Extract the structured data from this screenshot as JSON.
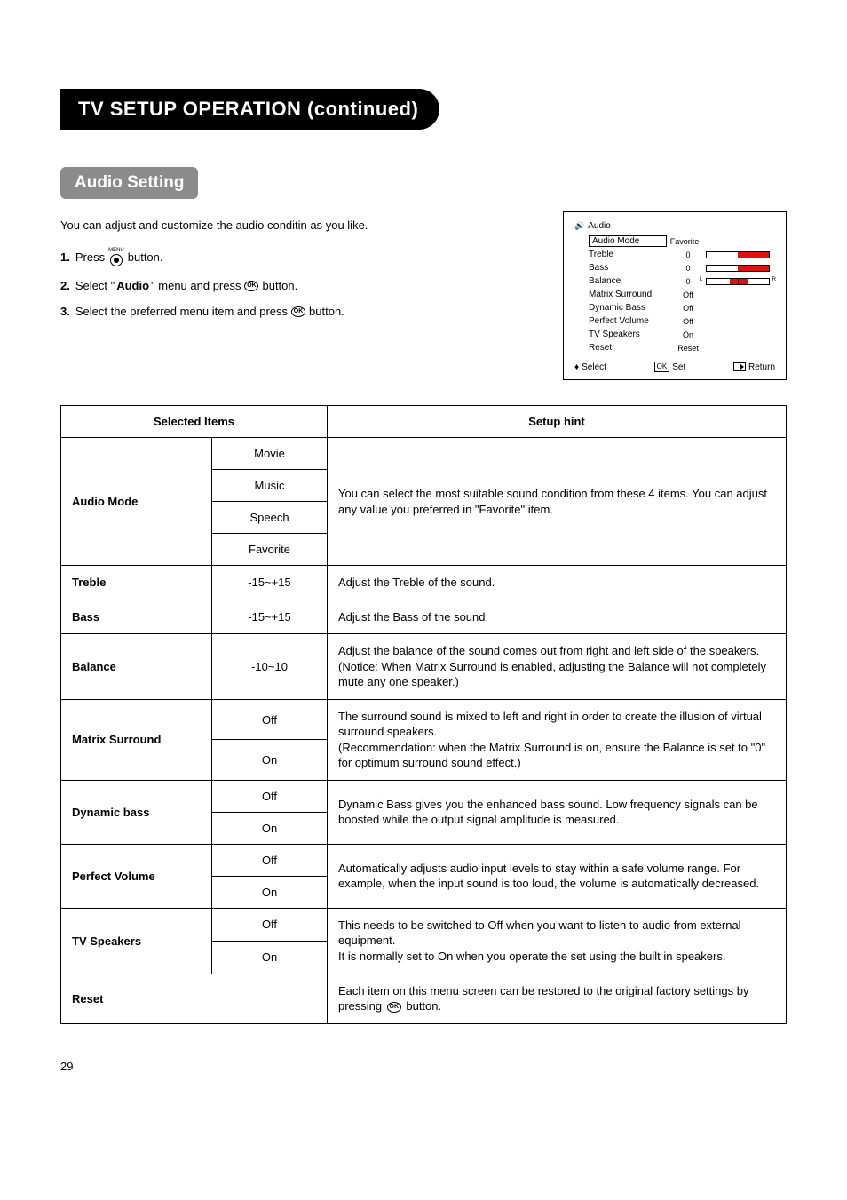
{
  "page": {
    "number": "29"
  },
  "title": "TV SETUP OPERATION (continued)",
  "subtitle": "Audio Setting",
  "intro": "You can adjust and customize the audio conditin as you like.",
  "steps": {
    "s1a": "Press",
    "s1b": "button.",
    "s2a": "Select \"",
    "s2b": "Audio",
    "s2c": "\" menu and press",
    "s2d": "button.",
    "s3a": "Select the preferred menu item and press",
    "s3b": "button.",
    "menu_label": "MENU",
    "ok_label": "OK"
  },
  "osd": {
    "title": "Audio",
    "rows": [
      {
        "label": "Audio Mode",
        "value": "Favorite",
        "boxed": true
      },
      {
        "label": "Treble",
        "value": "0",
        "slider": "half-right"
      },
      {
        "label": "Bass",
        "value": "0",
        "slider": "half-right"
      },
      {
        "label": "Balance",
        "value": "0",
        "slider": "center",
        "left": "L",
        "right": "R"
      },
      {
        "label": "Matrix Surround",
        "value": "Off"
      },
      {
        "label": "Dynamic Bass",
        "value": "Off"
      },
      {
        "label": "Perfect Volume",
        "value": "Off"
      },
      {
        "label": "TV Speakers",
        "value": "On"
      },
      {
        "label": "Reset",
        "value": "Reset"
      }
    ],
    "footer": {
      "select": "Select",
      "set": "Set",
      "ok": "OK",
      "return": "Return"
    },
    "colors": {
      "slider_fill": "#e01010"
    }
  },
  "table_headers": {
    "selected": "Selected Items",
    "hint": "Setup hint"
  },
  "table": [
    {
      "item": "Audio Mode",
      "opts": [
        "Movie",
        "Music",
        "Speech",
        "Favorite"
      ],
      "hint": "You can select the most suitable sound condition from these 4 items. You can adjust any value you preferred in \"Favorite\" item."
    },
    {
      "item": "Treble",
      "opts": [
        "-15~+15"
      ],
      "hint": "Adjust the Treble of the sound."
    },
    {
      "item": "Bass",
      "opts": [
        "-15~+15"
      ],
      "hint": "Adjust the Bass of the sound."
    },
    {
      "item": "Balance",
      "opts": [
        "-10~10"
      ],
      "hint": "Adjust the balance of the sound comes out from right and left side of the speakers.\n(Notice: When Matrix Surround is enabled, adjusting the Balance will not completely mute any one speaker.)"
    },
    {
      "item": "Matrix Surround",
      "opts": [
        "Off",
        "On"
      ],
      "hint": "The surround sound is mixed to left and right in order to create the illusion of virtual surround speakers.\n(Recommendation: when the Matrix Surround is on, ensure the Balance is set to \"0\" for optimum surround sound effect.)"
    },
    {
      "item": "Dynamic bass",
      "opts": [
        "Off",
        "On"
      ],
      "hint": "Dynamic Bass gives you the enhanced bass sound. Low frequency signals can be boosted while the output signal amplitude is measured."
    },
    {
      "item": "Perfect Volume",
      "opts": [
        "Off",
        "On"
      ],
      "hint": "Automatically adjusts audio input levels to stay within a safe volume range. For example, when the input sound is too loud, the volume is automatically decreased."
    },
    {
      "item": "TV Speakers",
      "opts": [
        "Off",
        "On"
      ],
      "hint": "This needs to be switched to Off when you want to listen to audio from external equipment.\nIt is normally set to On when you operate the set using the built in speakers."
    },
    {
      "item": "Reset",
      "opts": [],
      "hint_pre": "Each item on this menu screen can be restored to the original factory settings by pressing ",
      "hint_post": " button."
    }
  ]
}
